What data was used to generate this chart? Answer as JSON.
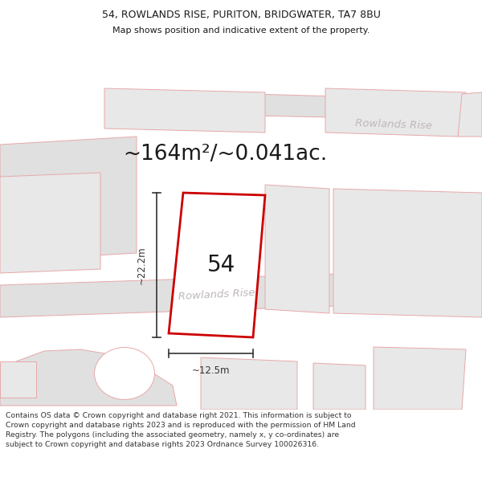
{
  "title_line1": "54, ROWLANDS RISE, PURITON, BRIDGWATER, TA7 8BU",
  "title_line2": "Map shows position and indicative extent of the property.",
  "area_text": "~164m²/~0.041ac.",
  "plot_number": "54",
  "dim_width": "~12.5m",
  "dim_height": "~22.2m",
  "road_label_lower": "Rowlands Rise",
  "road_label_upper": "Rowlands Rise",
  "footer_text": "Contains OS data © Crown copyright and database right 2021. This information is subject to Crown copyright and database rights 2023 and is reproduced with the permission of HM Land Registry. The polygons (including the associated geometry, namely x, y co-ordinates) are subject to Crown copyright and database rights 2023 Ordnance Survey 100026316.",
  "bg_color": "#ffffff",
  "building_fill": "#e8e8e8",
  "building_edge": "#e8a8a8",
  "road_fill": "#e0e0e0",
  "road_edge": "#e8a8a8",
  "highlight_edge": "#cc0000",
  "highlight_fill": "#ffffff",
  "line_color": "#333333",
  "text_color": "#1a1a1a",
  "road_text_color": "#c0b8b8",
  "footer_color": "#333333"
}
